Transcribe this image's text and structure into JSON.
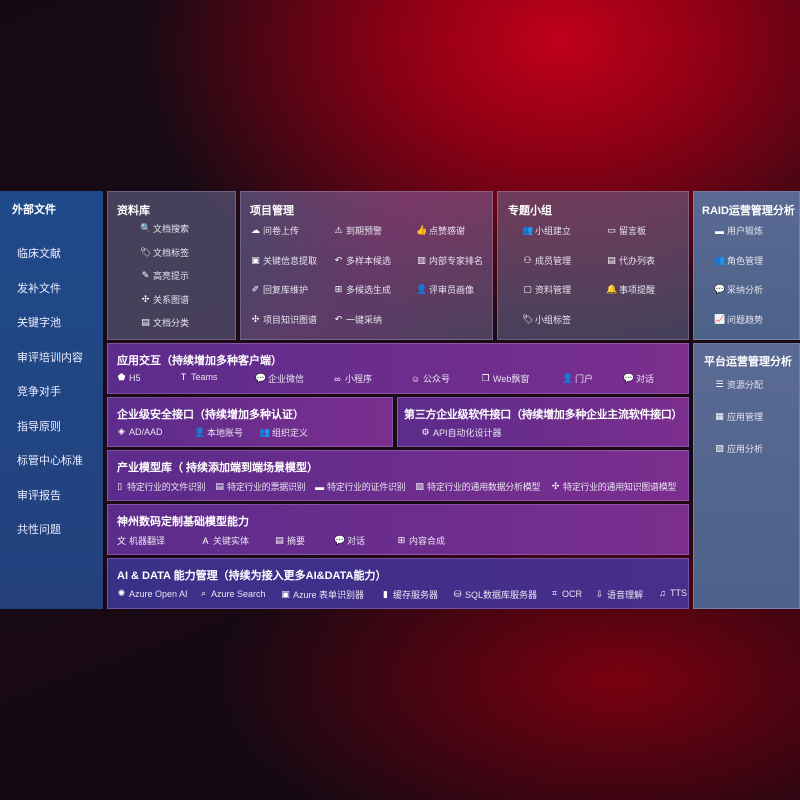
{
  "external": {
    "title": "外部文件",
    "items": [
      "临床文献",
      "发补文件",
      "关键字池",
      "审评培训内容",
      "竞争对手",
      "指导原则",
      "标管中心标准",
      "审评报告",
      "共性问题"
    ]
  },
  "library": {
    "title": "资料库",
    "items": [
      {
        "icon": "doc-search-icon",
        "label": "文档搜索"
      },
      {
        "icon": "tag-icon",
        "label": "文档标签"
      },
      {
        "icon": "pen-icon",
        "label": "高亮提示"
      },
      {
        "icon": "graph-icon",
        "label": "关系图谱"
      },
      {
        "icon": "doc-list-icon",
        "label": "文档分类"
      }
    ]
  },
  "project": {
    "title": "项目管理",
    "items": [
      {
        "icon": "cloud-upload-icon",
        "label": "问卷上传"
      },
      {
        "icon": "alarm-icon",
        "label": "到期预警"
      },
      {
        "icon": "thumbs-up-icon",
        "label": "点赞感谢"
      },
      {
        "icon": "doc-icon",
        "label": "关键信息提取"
      },
      {
        "icon": "reply-icon",
        "label": "多样本候选"
      },
      {
        "icon": "ranking-icon",
        "label": "内部专家排名"
      },
      {
        "icon": "edit-icon",
        "label": "回复库维护"
      },
      {
        "icon": "puzzle-icon",
        "label": "多候选生成"
      },
      {
        "icon": "user-icon",
        "label": "评审员画像"
      },
      {
        "icon": "graph-icon",
        "label": "项目知识图谱"
      },
      {
        "icon": "reply-icon",
        "label": "一键采纳"
      }
    ]
  },
  "group": {
    "title": "专题小组",
    "items": [
      {
        "icon": "group-icon",
        "label": "小组建立"
      },
      {
        "icon": "bbs-icon",
        "label": "留言板"
      },
      {
        "icon": "user-add-icon",
        "label": "成员管理"
      },
      {
        "icon": "clipboard-icon",
        "label": "代办列表"
      },
      {
        "icon": "folder-icon",
        "label": "资料管理"
      },
      {
        "icon": "bell-icon",
        "label": "事项提醒"
      },
      {
        "icon": "tag-icon",
        "label": "小组标签"
      }
    ]
  },
  "raid": {
    "title": "RAID运营管理分析",
    "items": [
      {
        "icon": "id-card-icon",
        "label": "用户锻炼"
      },
      {
        "icon": "users-icon",
        "label": "角色管理"
      },
      {
        "icon": "qa-icon",
        "label": "采纳分析"
      },
      {
        "icon": "trend-icon",
        "label": "问题趋势"
      }
    ]
  },
  "platform": {
    "title": "平台运营管理分析",
    "items": [
      {
        "icon": "list-icon",
        "label": "资源分配"
      },
      {
        "icon": "apps-icon",
        "label": "应用管理"
      },
      {
        "icon": "chart-icon",
        "label": "应用分析"
      }
    ]
  },
  "interaction": {
    "title": "应用交互（持续增加多种客户端）",
    "items": [
      {
        "icon": "h5-icon",
        "label": "H5"
      },
      {
        "icon": "teams-icon",
        "label": "Teams"
      },
      {
        "icon": "wechat-icon",
        "label": "企业微信"
      },
      {
        "icon": "miniprogram-icon",
        "label": "小程序"
      },
      {
        "icon": "official-account-icon",
        "label": "公众号"
      },
      {
        "icon": "window-icon",
        "label": "Web飘窗"
      },
      {
        "icon": "portal-icon",
        "label": "门户"
      },
      {
        "icon": "chat-icon",
        "label": "对话"
      }
    ]
  },
  "security": {
    "title": "企业级安全接口（持续增加多种认证）",
    "items": [
      {
        "icon": "ad-icon",
        "label": "AD/AAD"
      },
      {
        "icon": "account-icon",
        "label": "本地账号"
      },
      {
        "icon": "org-icon",
        "label": "组织定义"
      }
    ]
  },
  "thirdparty": {
    "title": "第三方企业级软件接口（持续增加多种企业主流软件接口）",
    "items": [
      {
        "icon": "gear-icon",
        "label": "API自动化设计器"
      }
    ]
  },
  "industry": {
    "title": "产业模型库（ 持续添加端到端场景模型）",
    "items": [
      {
        "icon": "file-icon",
        "label": "特定行业的文件识别"
      },
      {
        "icon": "receipt-icon",
        "label": "特定行业的票据识别"
      },
      {
        "icon": "id-card-icon",
        "label": "特定行业的证件识别"
      },
      {
        "icon": "analysis-icon",
        "label": "特定行业的通用数据分析模型"
      },
      {
        "icon": "graph-icon",
        "label": "特定行业的通用知识图谱模型"
      }
    ]
  },
  "base": {
    "title": "神州数码定制基础模型能力",
    "items": [
      {
        "icon": "translate-icon",
        "label": "机器翻译"
      },
      {
        "icon": "entity-icon",
        "label": "关键实体"
      },
      {
        "icon": "summary-icon",
        "label": "摘要"
      },
      {
        "icon": "chat-icon",
        "label": "对话"
      },
      {
        "icon": "compose-icon",
        "label": "内容合成"
      }
    ]
  },
  "aidata": {
    "title": "AI & DATA 能力管理（持续为接入更多AI&DATA能力）",
    "items": [
      {
        "icon": "openai-icon",
        "label": "Azure Open AI"
      },
      {
        "icon": "search-icon",
        "label": "Azure Search"
      },
      {
        "icon": "form-icon",
        "label": "Azure 表单识别器"
      },
      {
        "icon": "cache-icon",
        "label": "缓存服务器"
      },
      {
        "icon": "database-icon",
        "label": "SQL数据库服务器"
      },
      {
        "icon": "ocr-icon",
        "label": "OCR"
      },
      {
        "icon": "speech-icon",
        "label": "语音理解"
      },
      {
        "icon": "tts-icon",
        "label": "TTS"
      }
    ]
  }
}
